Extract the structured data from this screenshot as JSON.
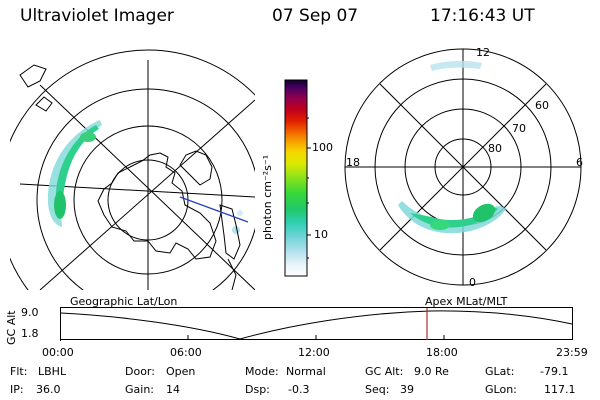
{
  "header": {
    "instrument": "Ultraviolet Imager",
    "date": "07 Sep 07",
    "time": "17:16:43 UT"
  },
  "geo_map": {
    "label": "Geographic Lat/Lon"
  },
  "polar_map": {
    "label": "Apex MLat/MLT",
    "mlt_labels": {
      "top": "12",
      "bottom": "0",
      "left": "18",
      "right": "6"
    },
    "lat_labels": [
      "60",
      "70",
      "80"
    ]
  },
  "colorbar": {
    "unit_label": "photon cm⁻²s⁻¹",
    "ticks": [
      "100",
      "10"
    ],
    "scale": "log"
  },
  "altitude_plot": {
    "axis_label": "GC Alt",
    "y_ticks": [
      "9.0",
      "1.8"
    ],
    "x_ticks": [
      "00:00",
      "06:00",
      "12:00",
      "18:00",
      "23:59"
    ],
    "current_time_marker_color": "#b03030"
  },
  "status": {
    "flt_label": "Flt:",
    "flt": "LBHL",
    "ip_label": "IP:",
    "ip": "36.0",
    "door_label": "Door:",
    "door": "Open",
    "gain_label": "Gain:",
    "gain": "14",
    "mode_label": "Mode:",
    "mode": "Normal",
    "dsp_label": "Dsp:",
    "dsp": "-0.3",
    "gcalt_label": "GC Alt:",
    "gcalt": "9.0 Re",
    "seq_label": "Seq:",
    "seq": "39",
    "glat_label": "GLat:",
    "glat": "-79.1",
    "glon_label": "GLon:",
    "glon": "117.1"
  },
  "colors": {
    "colorbar": [
      "#ffffff",
      "#e6f3f8",
      "#b7e2ee",
      "#6fd3d6",
      "#2fcfb3",
      "#22c86b",
      "#35d83a",
      "#8ae11c",
      "#d8ea00",
      "#f5d800",
      "#f7a800",
      "#f26a00",
      "#e02000",
      "#c0001a",
      "#8e0050",
      "#4a0060",
      "#10002a"
    ]
  }
}
